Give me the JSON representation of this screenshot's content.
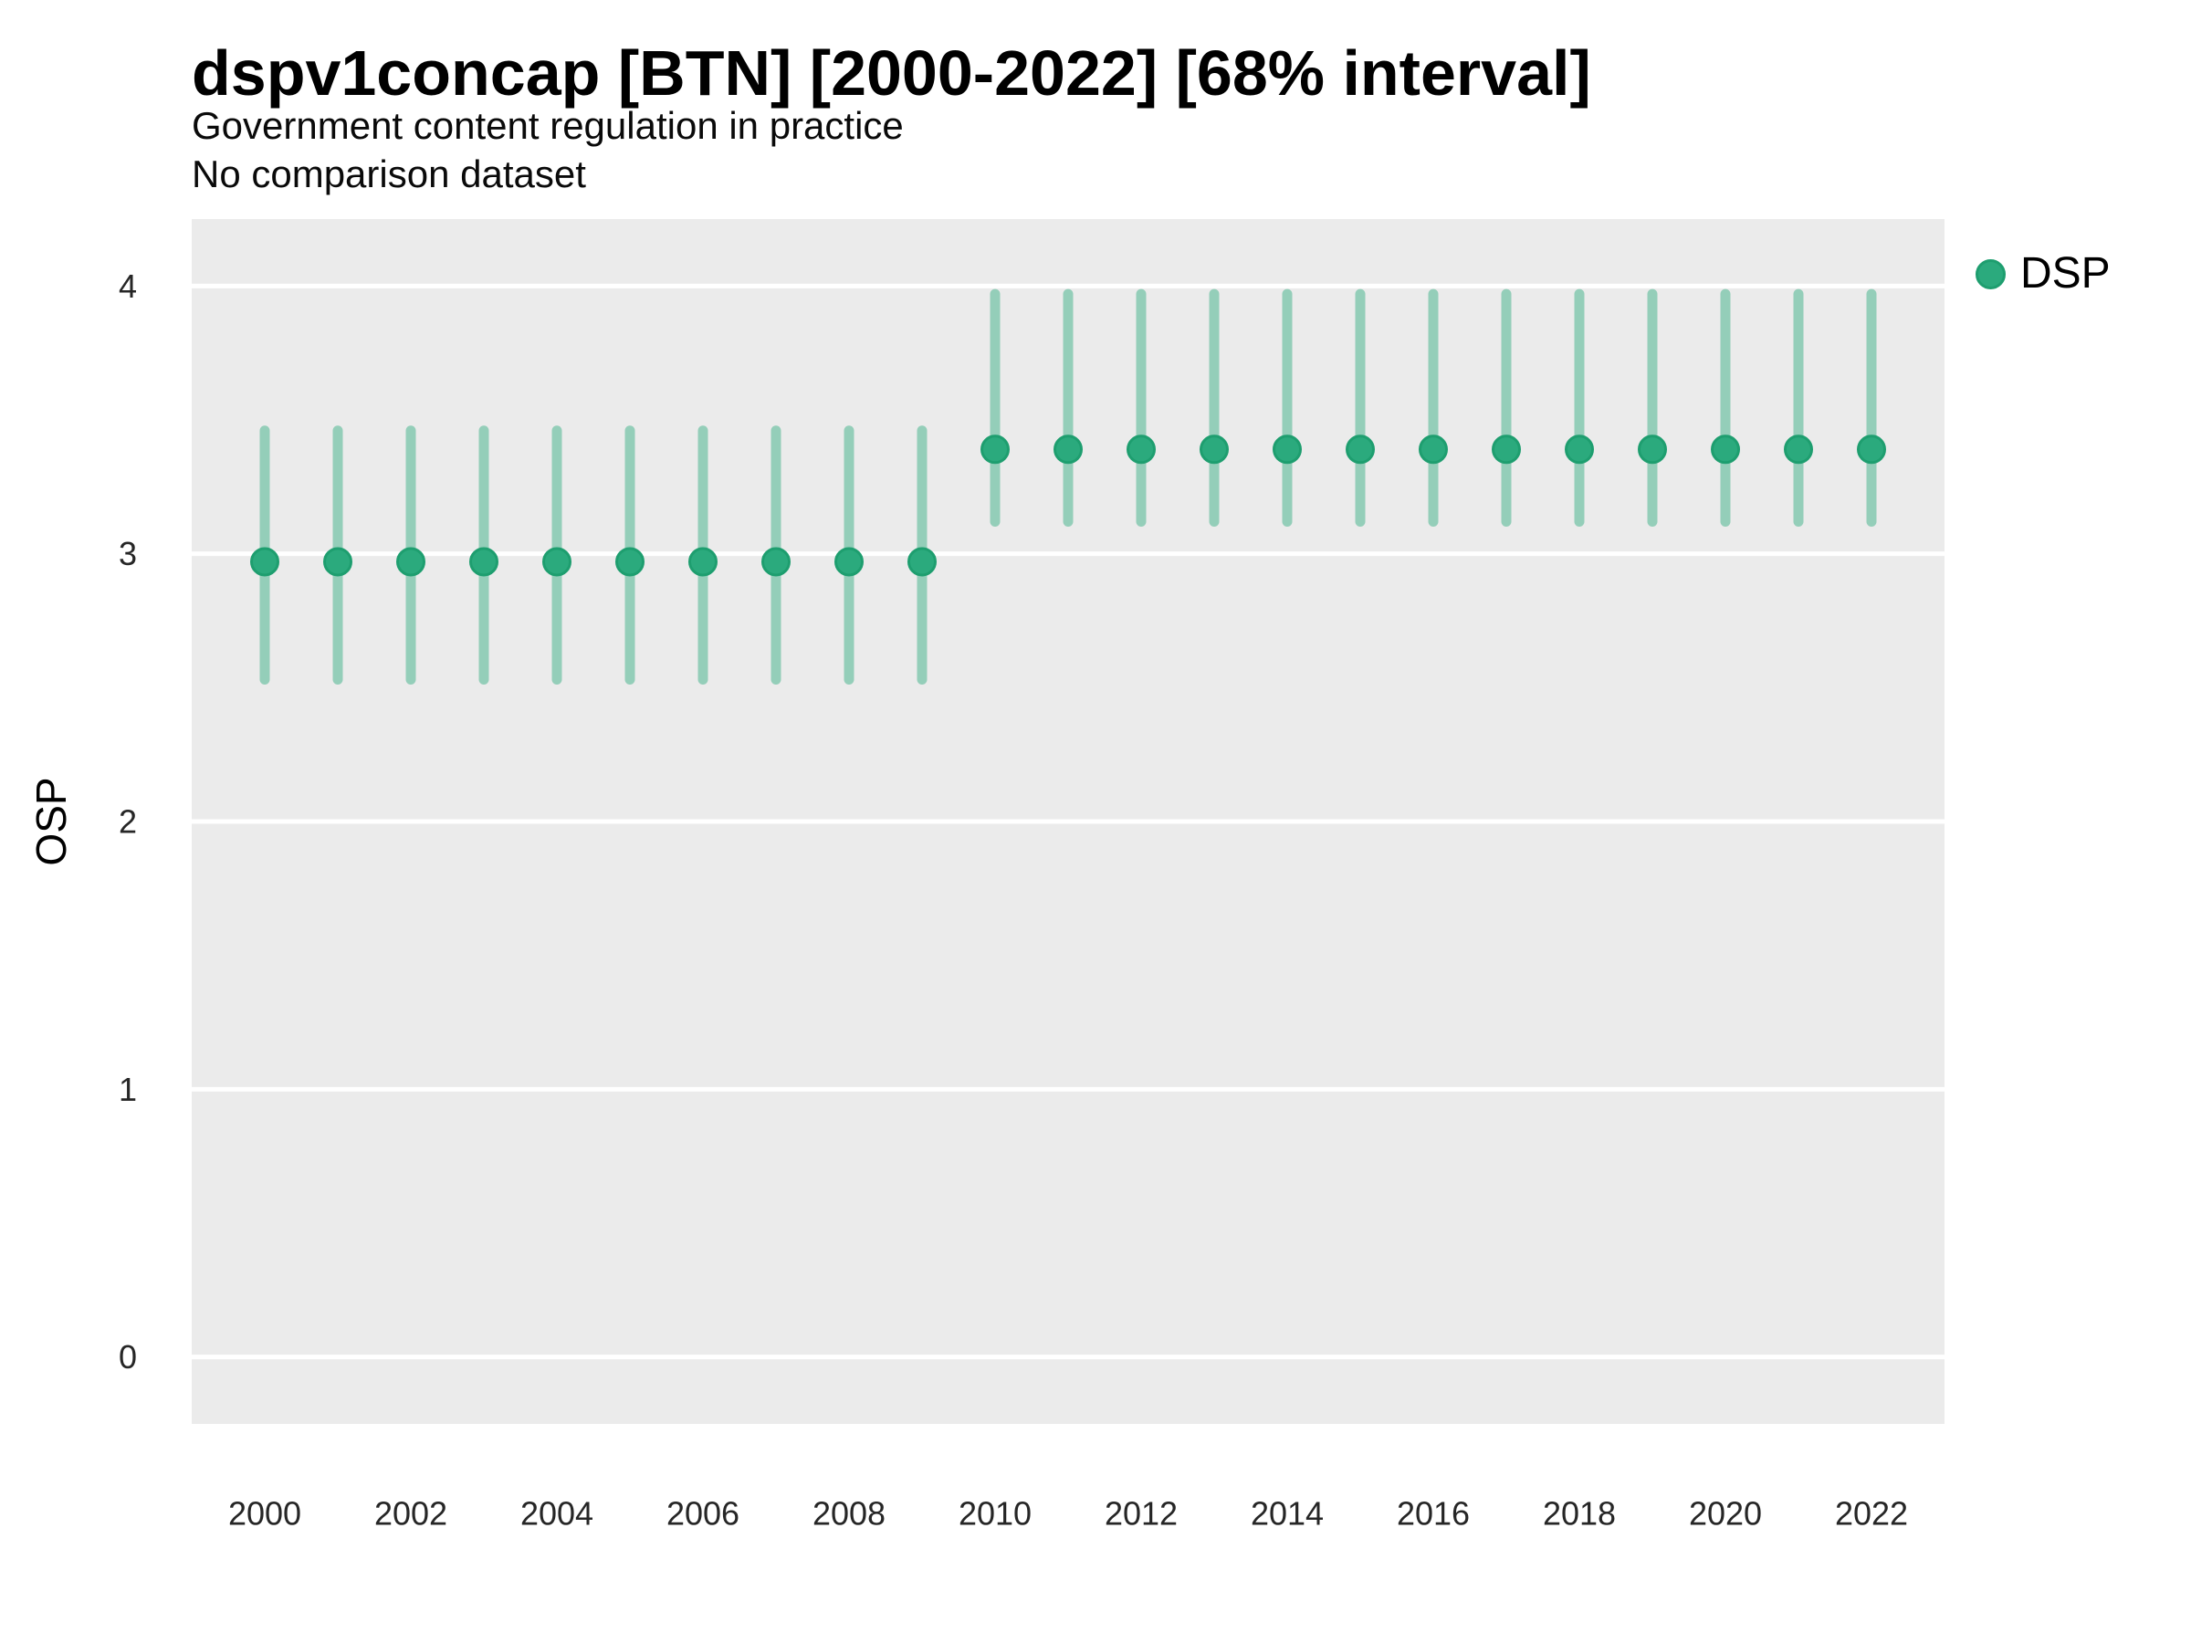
{
  "header": {
    "title": "dspv1concap [BTN] [2000-2022] [68% interval]",
    "subtitle": "Government content regulation in practice",
    "note": "No comparison dataset"
  },
  "colors": {
    "point": "#2BAA7D",
    "point_stroke": "#1E9E6F",
    "interval_line": "rgba(43,170,125,0.45)",
    "panel_bg": "#EBEBEB",
    "grid": "#FFFFFF",
    "tick_text": "#262626"
  },
  "chart_data": {
    "type": "pointrange",
    "title": "dspv1concap [BTN] [2000-2022] [68% interval]",
    "subtitle": "Government content regulation in practice",
    "note": "No comparison dataset",
    "xlabel": "",
    "ylabel": "OSP",
    "interval": "68%",
    "legend_position": "right",
    "grid": "horizontal-major-only",
    "xlim": [
      1999,
      2023
    ],
    "ylim": [
      -0.25,
      4.25
    ],
    "xticks": [
      2000,
      2002,
      2004,
      2006,
      2008,
      2010,
      2012,
      2014,
      2016,
      2018,
      2020,
      2022
    ],
    "yticks": [
      0,
      1,
      2,
      3,
      4
    ],
    "series": [
      {
        "name": "DSP",
        "points": [
          {
            "year": 2000,
            "est": 2.97,
            "lo": 2.53,
            "hi": 3.46
          },
          {
            "year": 2001,
            "est": 2.97,
            "lo": 2.53,
            "hi": 3.46
          },
          {
            "year": 2002,
            "est": 2.97,
            "lo": 2.53,
            "hi": 3.46
          },
          {
            "year": 2003,
            "est": 2.97,
            "lo": 2.53,
            "hi": 3.46
          },
          {
            "year": 2004,
            "est": 2.97,
            "lo": 2.53,
            "hi": 3.46
          },
          {
            "year": 2005,
            "est": 2.97,
            "lo": 2.53,
            "hi": 3.46
          },
          {
            "year": 2006,
            "est": 2.97,
            "lo": 2.53,
            "hi": 3.46
          },
          {
            "year": 2007,
            "est": 2.97,
            "lo": 2.53,
            "hi": 3.46
          },
          {
            "year": 2008,
            "est": 2.97,
            "lo": 2.53,
            "hi": 3.46
          },
          {
            "year": 2009,
            "est": 2.97,
            "lo": 2.53,
            "hi": 3.46
          },
          {
            "year": 2010,
            "est": 3.39,
            "lo": 3.12,
            "hi": 3.97
          },
          {
            "year": 2011,
            "est": 3.39,
            "lo": 3.12,
            "hi": 3.97
          },
          {
            "year": 2012,
            "est": 3.39,
            "lo": 3.12,
            "hi": 3.97
          },
          {
            "year": 2013,
            "est": 3.39,
            "lo": 3.12,
            "hi": 3.97
          },
          {
            "year": 2014,
            "est": 3.39,
            "lo": 3.12,
            "hi": 3.97
          },
          {
            "year": 2015,
            "est": 3.39,
            "lo": 3.12,
            "hi": 3.97
          },
          {
            "year": 2016,
            "est": 3.39,
            "lo": 3.12,
            "hi": 3.97
          },
          {
            "year": 2017,
            "est": 3.39,
            "lo": 3.12,
            "hi": 3.97
          },
          {
            "year": 2018,
            "est": 3.39,
            "lo": 3.12,
            "hi": 3.97
          },
          {
            "year": 2019,
            "est": 3.39,
            "lo": 3.12,
            "hi": 3.97
          },
          {
            "year": 2020,
            "est": 3.39,
            "lo": 3.12,
            "hi": 3.97
          },
          {
            "year": 2021,
            "est": 3.39,
            "lo": 3.12,
            "hi": 3.97
          },
          {
            "year": 2022,
            "est": 3.39,
            "lo": 3.12,
            "hi": 3.97
          }
        ]
      }
    ]
  }
}
